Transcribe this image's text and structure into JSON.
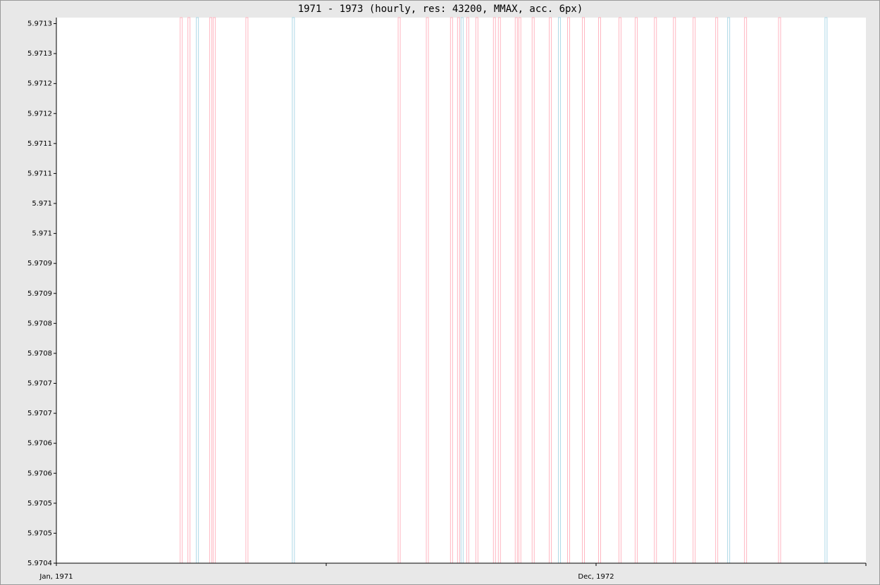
{
  "chart_data": {
    "type": "vline",
    "title": "1971 - 1973 (hourly, res: 43200, MMAX, acc. 6px)",
    "xlim": [
      0,
      34.5
    ],
    "xticks": [
      {
        "value": 0,
        "label": "Jan, 1971"
      },
      {
        "value": 11.5,
        "label": null
      },
      {
        "value": 23,
        "label": "Dec, 1972"
      },
      {
        "value": 34.5,
        "label": null
      }
    ],
    "ylim": [
      5.9704,
      5.97131
    ],
    "yticks": [
      {
        "value": 5.9704,
        "label": "5.9704"
      },
      {
        "value": 5.97045,
        "label": "5.9705"
      },
      {
        "value": 5.9705,
        "label": "5.9705"
      },
      {
        "value": 5.97055,
        "label": "5.9706"
      },
      {
        "value": 5.9706,
        "label": "5.9706"
      },
      {
        "value": 5.97065,
        "label": "5.9707"
      },
      {
        "value": 5.9707,
        "label": "5.9707"
      },
      {
        "value": 5.97075,
        "label": "5.9708"
      },
      {
        "value": 5.9708,
        "label": "5.9708"
      },
      {
        "value": 5.97085,
        "label": "5.9709"
      },
      {
        "value": 5.9709,
        "label": "5.9709"
      },
      {
        "value": 5.97095,
        "label": "5.971"
      },
      {
        "value": 5.971,
        "label": "5.971"
      },
      {
        "value": 5.97105,
        "label": "5.9711"
      },
      {
        "value": 5.9711,
        "label": "5.9711"
      },
      {
        "value": 5.97115,
        "label": "5.9712"
      },
      {
        "value": 5.9712,
        "label": "5.9712"
      },
      {
        "value": 5.97125,
        "label": "5.9713"
      },
      {
        "value": 5.9713,
        "label": "5.9713"
      }
    ],
    "series": [
      {
        "color": "#ffb6c1",
        "x": [
          5.32,
          5.65,
          6.58,
          6.73,
          8.12,
          14.61,
          15.81,
          16.84,
          17.14,
          17.53,
          17.92,
          18.67,
          18.88,
          19.6,
          19.75,
          20.32,
          21.05,
          21.83,
          22.46,
          23.15,
          24.02,
          24.71,
          25.53,
          26.34,
          27.18,
          28.14,
          29.37,
          30.82
        ]
      },
      {
        "color": "#add8e6",
        "x": [
          6.01,
          10.1,
          17.29,
          21.44,
          28.65,
          32.8
        ]
      }
    ]
  }
}
